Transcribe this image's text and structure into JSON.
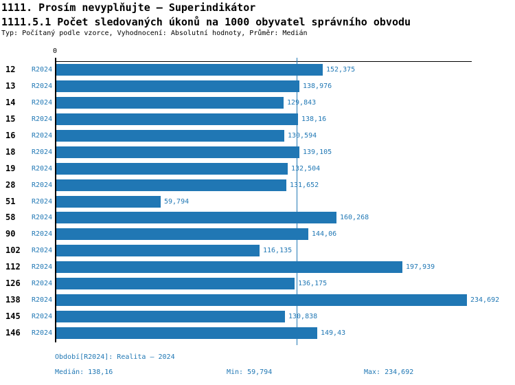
{
  "header": {
    "title_line1": "1111. Prosím nevyplňujte – Superindikátor",
    "title_line2": "1111.5.1 Počet sledovaných úkonů na 1000 obyvatel správního obvodu",
    "meta_line": "Typ: Počítaný podle vzorce, Vyhodnocení: Absolutní hodnoty, Průměr: Medián"
  },
  "chart_data": {
    "type": "bar",
    "orientation": "horizontal",
    "title": "1111.5.1 Počet sledovaných úkonů na 1000 obyvatel správního obvodu",
    "categories": [
      "12",
      "13",
      "14",
      "15",
      "16",
      "18",
      "19",
      "28",
      "51",
      "58",
      "90",
      "102",
      "112",
      "126",
      "138",
      "145",
      "146"
    ],
    "series": [
      {
        "name": "R2024",
        "values": [
          152.375,
          138.976,
          129.843,
          138.16,
          130.594,
          139.105,
          132.504,
          131.652,
          59.794,
          160.268,
          144.06,
          116.135,
          197.939,
          136.175,
          234.692,
          130.838,
          149.43
        ]
      }
    ],
    "value_labels": [
      "152,375",
      "138,976",
      "129,843",
      "138,16",
      "130,594",
      "139,105",
      "132,504",
      "131,652",
      "59,794",
      "160,268",
      "144,06",
      "116,135",
      "197,939",
      "136,175",
      "234,692",
      "130,838",
      "149,43"
    ],
    "rows": [
      {
        "id": "12",
        "period": "R2024",
        "value": 152.375,
        "label": "152,375"
      },
      {
        "id": "13",
        "period": "R2024",
        "value": 138.976,
        "label": "138,976"
      },
      {
        "id": "14",
        "period": "R2024",
        "value": 129.843,
        "label": "129,843"
      },
      {
        "id": "15",
        "period": "R2024",
        "value": 138.16,
        "label": "138,16"
      },
      {
        "id": "16",
        "period": "R2024",
        "value": 130.594,
        "label": "130,594"
      },
      {
        "id": "18",
        "period": "R2024",
        "value": 139.105,
        "label": "139,105"
      },
      {
        "id": "19",
        "period": "R2024",
        "value": 132.504,
        "label": "132,504"
      },
      {
        "id": "28",
        "period": "R2024",
        "value": 131.652,
        "label": "131,652"
      },
      {
        "id": "51",
        "period": "R2024",
        "value": 59.794,
        "label": "59,794"
      },
      {
        "id": "58",
        "period": "R2024",
        "value": 160.268,
        "label": "160,268"
      },
      {
        "id": "90",
        "period": "R2024",
        "value": 144.06,
        "label": "144,06"
      },
      {
        "id": "102",
        "period": "R2024",
        "value": 116.135,
        "label": "116,135"
      },
      {
        "id": "112",
        "period": "R2024",
        "value": 197.939,
        "label": "197,939"
      },
      {
        "id": "126",
        "period": "R2024",
        "value": 136.175,
        "label": "136,175"
      },
      {
        "id": "138",
        "period": "R2024",
        "value": 234.692,
        "label": "234,692"
      },
      {
        "id": "145",
        "period": "R2024",
        "value": 130.838,
        "label": "130,838"
      },
      {
        "id": "146",
        "period": "R2024",
        "value": 149.43,
        "label": "149,43"
      }
    ],
    "axis": {
      "zero_tick_label": "0",
      "xlim": [
        0,
        237.6
      ],
      "median_line_value": 138.16
    },
    "colors": {
      "bar": "#2077b4",
      "median_line": "#1f77b4",
      "axis": "#000000",
      "value_text": "#1f77b4"
    },
    "grid": false,
    "legend_position": "none"
  },
  "footer": {
    "period_line": "Období[R2024]: Realita – 2024",
    "median_label": "Medián: 138,16",
    "min_label": "Min: 59,794",
    "max_label": "Max: 234,692"
  }
}
